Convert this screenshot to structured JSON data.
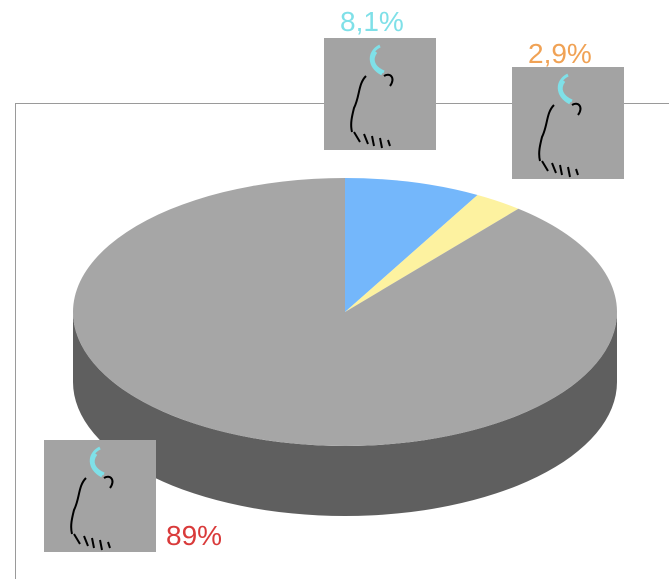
{
  "chart_data": {
    "type": "pie",
    "style": "3d",
    "slices": [
      {
        "label": "8,1%",
        "value": 8.1,
        "color": "#74b7fb",
        "label_color": "#7fe0e8",
        "icon": "nose-profile-icon"
      },
      {
        "label": "2,9%",
        "value": 2.9,
        "color": "#fdf2a0",
        "label_color": "#f0a255",
        "icon": "nose-profile-icon"
      },
      {
        "label": "89%",
        "value": 89,
        "color": "#a6a6a6",
        "label_color": "#d93a3a",
        "icon": "nose-profile-icon"
      }
    ],
    "side_color": "#5f5f5f",
    "legend": "none"
  }
}
